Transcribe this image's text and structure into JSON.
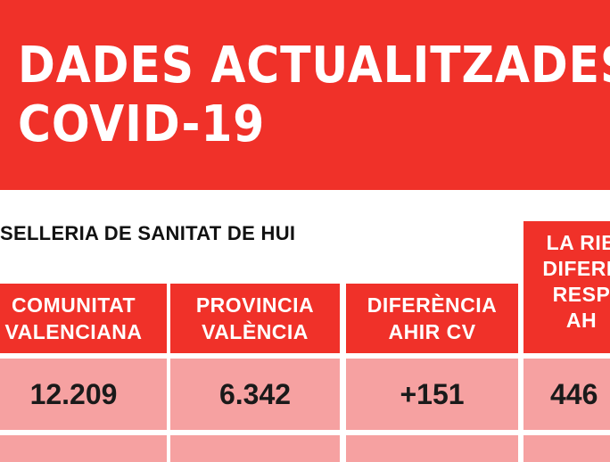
{
  "banner": {
    "title_line1": "DADES ACTUALITZADES",
    "title_line2": "COVID-19"
  },
  "subtitle": "SELLERIA DE SANITAT DE HUI",
  "colors": {
    "red": "#f03129",
    "pink": "#f6a1a1",
    "white": "#ffffff"
  },
  "table": {
    "headers": [
      {
        "line1": "COMUNITAT",
        "line2": "VALENCIANA"
      },
      {
        "line1": "PROVINCIA",
        "line2": "VALÈNCIA"
      },
      {
        "line1": "DIFERÈNCIA",
        "line2": "AHIR CV"
      },
      {
        "line1": "LA RIB",
        "line2": "DIFERÈ",
        "line3": "RESP",
        "line4": "AH"
      }
    ],
    "values": [
      "12.209",
      "6.342",
      "+151",
      "446"
    ]
  }
}
